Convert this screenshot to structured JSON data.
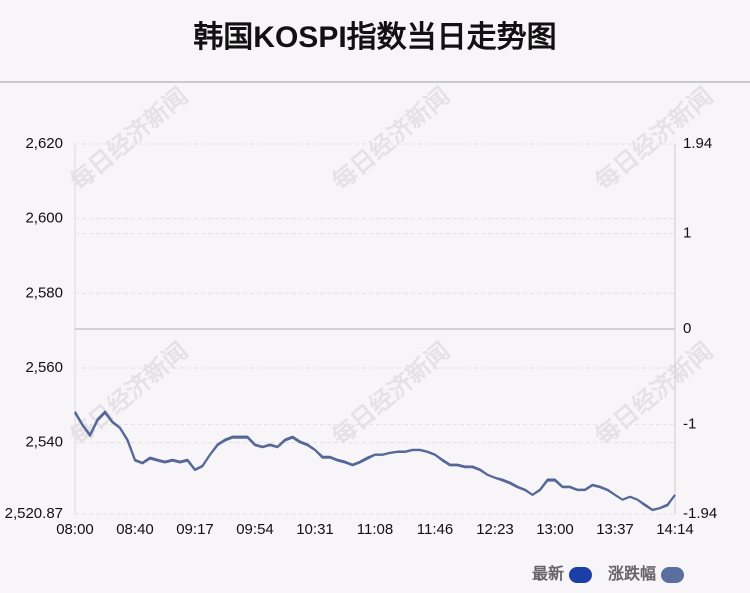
{
  "chart_data": {
    "type": "line",
    "title": "韩国KOSPI指数当日走势图",
    "watermark": "每日经济新闻",
    "categories": [
      "08:00",
      null,
      null,
      null,
      null,
      null,
      null,
      null,
      "08:40",
      null,
      null,
      null,
      null,
      null,
      null,
      null,
      "09:17",
      null,
      null,
      null,
      null,
      null,
      null,
      null,
      "09:54",
      null,
      null,
      null,
      null,
      null,
      null,
      null,
      "10:31",
      null,
      null,
      null,
      null,
      null,
      null,
      null,
      "11:08",
      null,
      null,
      null,
      null,
      null,
      null,
      null,
      "11:46",
      null,
      null,
      null,
      null,
      null,
      null,
      null,
      "12:23",
      null,
      null,
      null,
      null,
      null,
      null,
      null,
      "13:00",
      null,
      null,
      null,
      null,
      null,
      null,
      null,
      "13:37",
      null,
      null,
      null,
      null,
      null,
      null,
      null,
      "14:14"
    ],
    "ylim": [
      2520.87,
      2620
    ],
    "yticks": [
      {
        "value": 2520.87,
        "label": "2,520.87"
      },
      {
        "value": 2540,
        "label": "2,540"
      },
      {
        "value": 2560,
        "label": "2,560"
      },
      {
        "value": 2580,
        "label": "2,580"
      },
      {
        "value": 2600,
        "label": "2,600"
      },
      {
        "value": 2620,
        "label": "2,620"
      }
    ],
    "y2lim": [
      -1.94,
      1.94
    ],
    "y2ticks": [
      -1.94,
      -1,
      0,
      1,
      1.94
    ],
    "grid": true,
    "legend": "bottom-right",
    "series": [
      {
        "name": "最新",
        "color": "#1b3fa6",
        "line_color": "#4d6190",
        "values": [
          2548.3,
          2544.8,
          2542.1,
          2546.2,
          2548.3,
          2545.6,
          2544.0,
          2540.8,
          2535.4,
          2534.6,
          2536.0,
          2535.4,
          2534.9,
          2535.4,
          2534.9,
          2535.4,
          2532.8,
          2533.8,
          2536.8,
          2539.5,
          2540.8,
          2541.6,
          2541.6,
          2541.6,
          2539.5,
          2538.9,
          2539.5,
          2538.9,
          2540.8,
          2541.6,
          2540.3,
          2539.5,
          2538.1,
          2536.2,
          2536.2,
          2535.4,
          2534.9,
          2534.1,
          2534.9,
          2536.0,
          2536.8,
          2536.8,
          2537.3,
          2537.6,
          2537.6,
          2538.1,
          2538.1,
          2537.6,
          2536.8,
          2535.4,
          2534.1,
          2534.1,
          2533.6,
          2533.6,
          2532.8,
          2531.4,
          2530.6,
          2530.1,
          2529.3,
          2528.2,
          2527.4,
          2526.0,
          2527.4,
          2530.1,
          2530.1,
          2528.2,
          2528.2,
          2527.4,
          2527.4,
          2528.7,
          2528.2,
          2527.4,
          2526.0,
          2524.7,
          2525.5,
          2524.7,
          2523.4,
          2522.0,
          2522.5,
          2523.4,
          2526.0
        ]
      },
      {
        "name": "涨跌幅",
        "color": "#5b6f9e",
        "line_color": "#56699a",
        "axis": "y2",
        "values": [
          -0.88,
          -1.01,
          -1.12,
          -0.96,
          -0.88,
          -0.98,
          -1.04,
          -1.17,
          -1.38,
          -1.41,
          -1.36,
          -1.38,
          -1.4,
          -1.38,
          -1.4,
          -1.38,
          -1.48,
          -1.44,
          -1.32,
          -1.22,
          -1.17,
          -1.14,
          -1.14,
          -1.14,
          -1.22,
          -1.24,
          -1.22,
          -1.24,
          -1.17,
          -1.14,
          -1.19,
          -1.22,
          -1.27,
          -1.35,
          -1.35,
          -1.38,
          -1.4,
          -1.43,
          -1.4,
          -1.36,
          -1.32,
          -1.32,
          -1.3,
          -1.29,
          -1.29,
          -1.27,
          -1.27,
          -1.29,
          -1.32,
          -1.38,
          -1.43,
          -1.43,
          -1.45,
          -1.45,
          -1.48,
          -1.53,
          -1.56,
          -1.59,
          -1.62,
          -1.66,
          -1.69,
          -1.74,
          -1.69,
          -1.59,
          -1.59,
          -1.66,
          -1.66,
          -1.69,
          -1.69,
          -1.64,
          -1.66,
          -1.69,
          -1.74,
          -1.79,
          -1.76,
          -1.79,
          -1.85,
          -1.9,
          -1.88,
          -1.85,
          -1.74
        ]
      }
    ]
  }
}
